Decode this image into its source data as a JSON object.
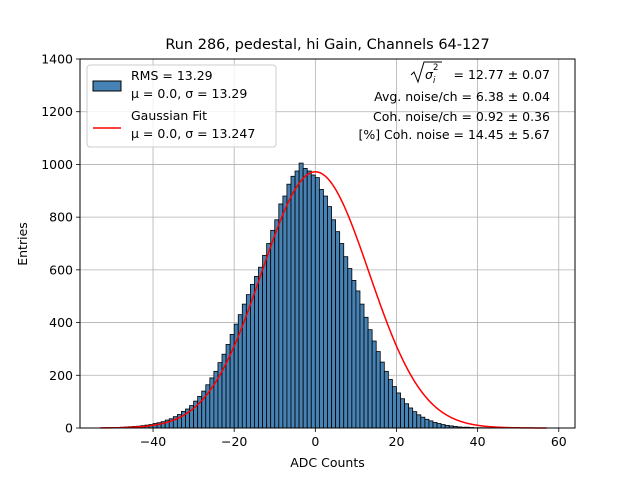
{
  "chart_data": {
    "type": "bar",
    "title": "Run 286, pedestal, hi Gain, Channels 64-127",
    "xlabel": "ADC Counts",
    "ylabel": "Entries",
    "xlim": [
      -58,
      64
    ],
    "ylim": [
      0,
      1400
    ],
    "x_ticks": [
      -40,
      -20,
      0,
      20,
      40,
      60
    ],
    "y_ticks": [
      0,
      200,
      400,
      600,
      800,
      1000,
      1200,
      1400
    ],
    "grid": true,
    "legend_position": "top-left",
    "legend": [
      {
        "type": "patch",
        "color": "#4682b4",
        "label": "RMS = 13.29",
        "label2": "μ = 0.0, σ = 13.29"
      },
      {
        "type": "line",
        "color": "#ff0000",
        "label": "Gaussian Fit",
        "label2": "μ = 0.0, σ = 13.247"
      }
    ],
    "annotations": [
      {
        "pre": "",
        "sqrt_text": "σ",
        "sup": "2",
        "sub": "i",
        "post": " = 12.77 ± 0.07"
      },
      {
        "text": "Avg. noise/ch = 6.38 ± 0.04"
      },
      {
        "text": "Coh. noise/ch = 0.92 ± 0.36"
      },
      {
        "text": "[%] Coh. noise = 14.45 ± 5.67"
      }
    ],
    "series": [
      {
        "name": "RMS = 13.29",
        "kind": "histogram",
        "color": "#4682b4",
        "bin_width": 1,
        "bin_start": -53,
        "values": [
          0,
          1,
          1,
          2,
          2,
          3,
          4,
          5,
          6,
          7,
          9,
          11,
          13,
          17,
          20,
          24,
          30,
          35,
          43,
          51,
          63,
          72,
          85,
          102,
          120,
          140,
          164,
          190,
          215,
          248,
          280,
          317,
          355,
          394,
          430,
          470,
          506,
          545,
          575,
          610,
          655,
          700,
          750,
          790,
          850,
          880,
          925,
          955,
          975,
          1005,
          985,
          975,
          960,
          950,
          905,
          880,
          840,
          790,
          745,
          700,
          650,
          605,
          560,
          520,
          470,
          420,
          373,
          330,
          290,
          250,
          215,
          184,
          157,
          133,
          111,
          92,
          76,
          62,
          50,
          41,
          33,
          27,
          21,
          17,
          13,
          10,
          8,
          6,
          4,
          3,
          3,
          2,
          1,
          1,
          1,
          1,
          0,
          0,
          0,
          0,
          0,
          0,
          0,
          0,
          0,
          0,
          0,
          0,
          0,
          0,
          0
        ]
      },
      {
        "name": "Gaussian Fit",
        "kind": "line",
        "color": "#ff0000",
        "mu": 0.0,
        "sigma": 13.247,
        "amplitude": 972,
        "x_range": [
          -53,
          57
        ]
      }
    ]
  }
}
